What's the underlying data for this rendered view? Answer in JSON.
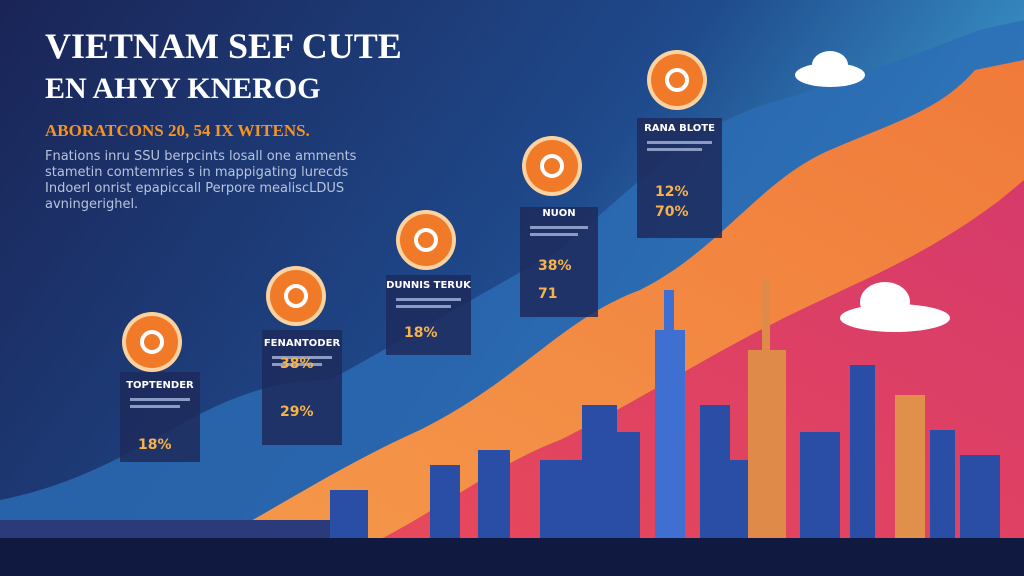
{
  "header": {
    "title_lines": [
      "VIETNAM SEF CUTE",
      "EN AHYY KNEROG"
    ],
    "subtitle": "ABORATCONS 20, 54 IX WITENS.",
    "body_lines": [
      "Fnations inru SSU berpcints losall one amments",
      "stametin comtemries s in mappigating lurecds",
      "Indoerl onrist epapiccall Perpore mealiscLDUS",
      "avningerighel."
    ]
  },
  "cards": [
    {
      "label": "TOPTENDER",
      "values": [
        "18%"
      ]
    },
    {
      "label": "FENANTODER",
      "values": [
        "38%",
        "29%"
      ]
    },
    {
      "label": "DUNNIS TERUK",
      "values": [
        "18%"
      ]
    },
    {
      "label": "NUON",
      "values": [
        "38%",
        "71"
      ]
    },
    {
      "label": "RANA BLOTE",
      "values": [
        "12%",
        "70%"
      ]
    }
  ]
}
